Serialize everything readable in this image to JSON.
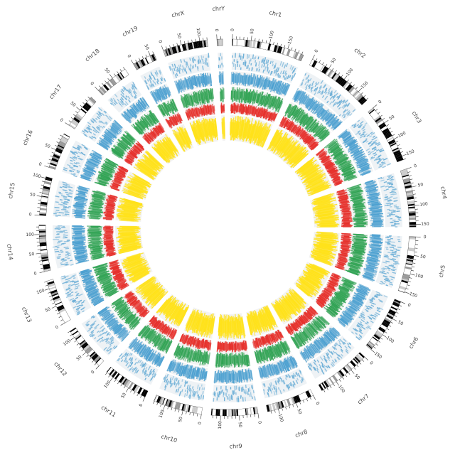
{
  "chart_data": {
    "type": "circos",
    "chromosomes": [
      {
        "name": "chr1",
        "length": 195
      },
      {
        "name": "chr2",
        "length": 182
      },
      {
        "name": "chr3",
        "length": 160
      },
      {
        "name": "chr4",
        "length": 157
      },
      {
        "name": "chr5",
        "length": 152
      },
      {
        "name": "chr6",
        "length": 150
      },
      {
        "name": "chr7",
        "length": 145
      },
      {
        "name": "chr8",
        "length": 129
      },
      {
        "name": "chr9",
        "length": 125
      },
      {
        "name": "chr10",
        "length": 131
      },
      {
        "name": "chr11",
        "length": 122
      },
      {
        "name": "chr12",
        "length": 120
      },
      {
        "name": "chr13",
        "length": 121
      },
      {
        "name": "chr14",
        "length": 125
      },
      {
        "name": "chr15",
        "length": 104
      },
      {
        "name": "chr16",
        "length": 98
      },
      {
        "name": "chr17",
        "length": 95
      },
      {
        "name": "chr18",
        "length": 91
      },
      {
        "name": "chr19",
        "length": 61
      },
      {
        "name": "chrX",
        "length": 120
      },
      {
        "name": "chrY",
        "length": 15
      }
    ],
    "ticks": [
      0,
      50,
      100,
      150
    ],
    "tracks": [
      {
        "color": "#6baed6"
      },
      {
        "color": "#4a9fd0"
      },
      {
        "color": "#31a354"
      },
      {
        "color": "#e6302b"
      },
      {
        "color": "#ffe21a"
      }
    ]
  }
}
